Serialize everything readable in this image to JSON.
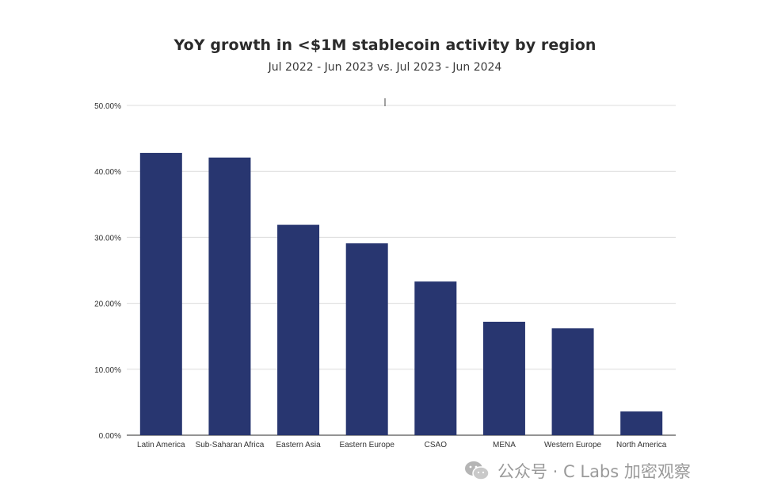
{
  "chart_data": {
    "type": "bar",
    "title": "YoY growth in <$1M stablecoin activity by region",
    "subtitle": "Jul 2022 - Jun 2023 vs. Jul 2023 - Jun 2024",
    "xlabel": "",
    "ylabel": "",
    "categories": [
      "Latin America",
      "Sub-Saharan Africa",
      "Eastern Asia",
      "Eastern Europe",
      "CSAO",
      "MENA",
      "Western Europe",
      "North America"
    ],
    "values": [
      42.8,
      42.1,
      31.9,
      29.1,
      23.3,
      17.2,
      16.2,
      3.6
    ],
    "ylim": [
      0,
      50
    ],
    "yticks": [
      "0.00%",
      "10.00%",
      "20.00%",
      "30.00%",
      "40.00%",
      "50.00%"
    ],
    "grid": true,
    "legend": "none",
    "bar_color": "#283670"
  },
  "watermark": {
    "text": "公众号 · C Labs 加密观察",
    "icon": "wechat-icon"
  }
}
